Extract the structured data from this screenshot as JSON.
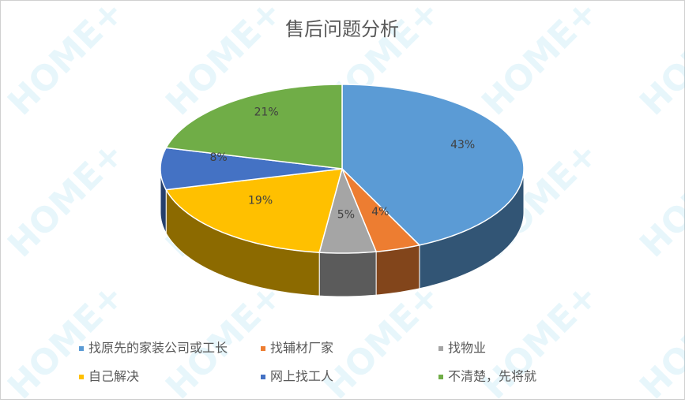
{
  "chart_data": {
    "type": "pie3d",
    "title": "售后问题分析",
    "watermark": "HOME+",
    "categories": [
      "找原先的家装公司或工长",
      "找辅材厂家",
      "找物业",
      "自己解决",
      "网上找工人",
      "不清楚，先将就"
    ],
    "values": [
      43,
      4,
      5,
      19,
      8,
      21
    ],
    "value_labels": [
      "43%",
      "4%",
      "5%",
      "19%",
      "8%",
      "21%"
    ],
    "colors": [
      "#5b9bd5",
      "#ed7d31",
      "#a5a5a5",
      "#ffc000",
      "#4472c4",
      "#70ad47"
    ],
    "legend": "bottom"
  }
}
